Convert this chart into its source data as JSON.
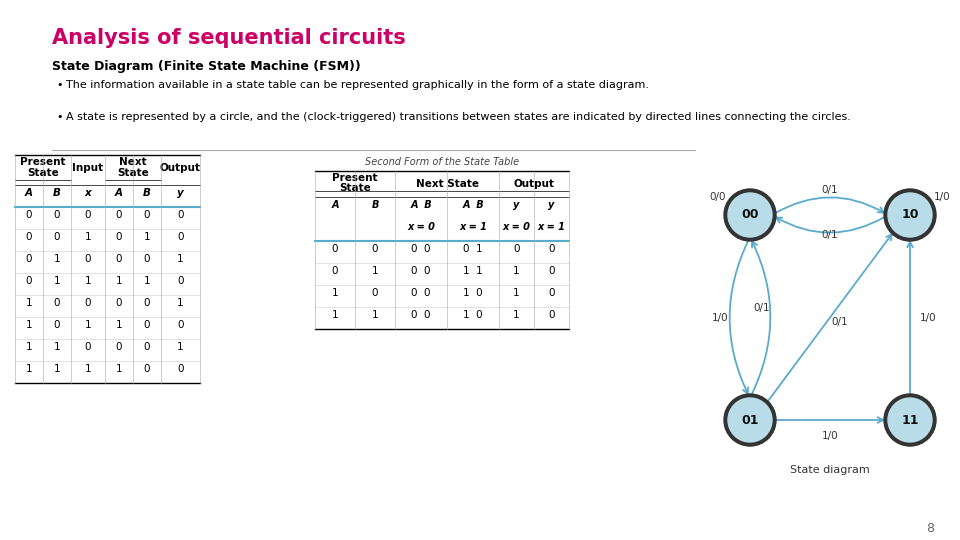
{
  "title": "Analysis of sequential circuits",
  "title_color": "#cc0066",
  "subtitle": "State Diagram (Finite State Machine (FSM))",
  "bullet1": "The information available in a state table can be represented graphically in the form of a state diagram.",
  "bullet2": "A state is represented by a circle, and the (clock-triggered) transitions between states are indicated by directed lines connecting the circles.",
  "t1_h1": [
    "Present",
    "State",
    "Input",
    "Next",
    "State",
    "Output"
  ],
  "t1_h2": [
    "A",
    "B",
    "x",
    "A",
    "B",
    "y"
  ],
  "t1_data": [
    [
      "0",
      "0",
      "0",
      "0",
      "0",
      "0"
    ],
    [
      "0",
      "0",
      "1",
      "0",
      "1",
      "0"
    ],
    [
      "0",
      "1",
      "0",
      "0",
      "0",
      "1"
    ],
    [
      "0",
      "1",
      "1",
      "1",
      "1",
      "0"
    ],
    [
      "1",
      "0",
      "0",
      "0",
      "0",
      "1"
    ],
    [
      "1",
      "0",
      "1",
      "1",
      "0",
      "0"
    ],
    [
      "1",
      "1",
      "0",
      "0",
      "0",
      "1"
    ],
    [
      "1",
      "1",
      "1",
      "1",
      "0",
      "0"
    ]
  ],
  "t2_title": "Second Form of the State Table",
  "t2_h1": [
    "Present",
    "State",
    "Next State",
    "",
    "Output",
    ""
  ],
  "t2_h2": [
    "A",
    "B",
    "A  B",
    "A  B",
    "y",
    "y"
  ],
  "t2_h3": [
    "",
    "",
    "x = 0",
    "x = 1",
    "x = 0",
    "x = 1"
  ],
  "t2_data": [
    [
      "0",
      "0",
      "0  0",
      "0  1",
      "0",
      "0"
    ],
    [
      "0",
      "1",
      "0  0",
      "1  1",
      "1",
      "0"
    ],
    [
      "1",
      "0",
      "0  0",
      "1  0",
      "1",
      "0"
    ],
    [
      "1",
      "1",
      "0  0",
      "1  0",
      "1",
      "0"
    ]
  ],
  "fsm_node_color": "#b8dde8",
  "fsm_edge_color": "#5aabcb",
  "page_number": "8"
}
